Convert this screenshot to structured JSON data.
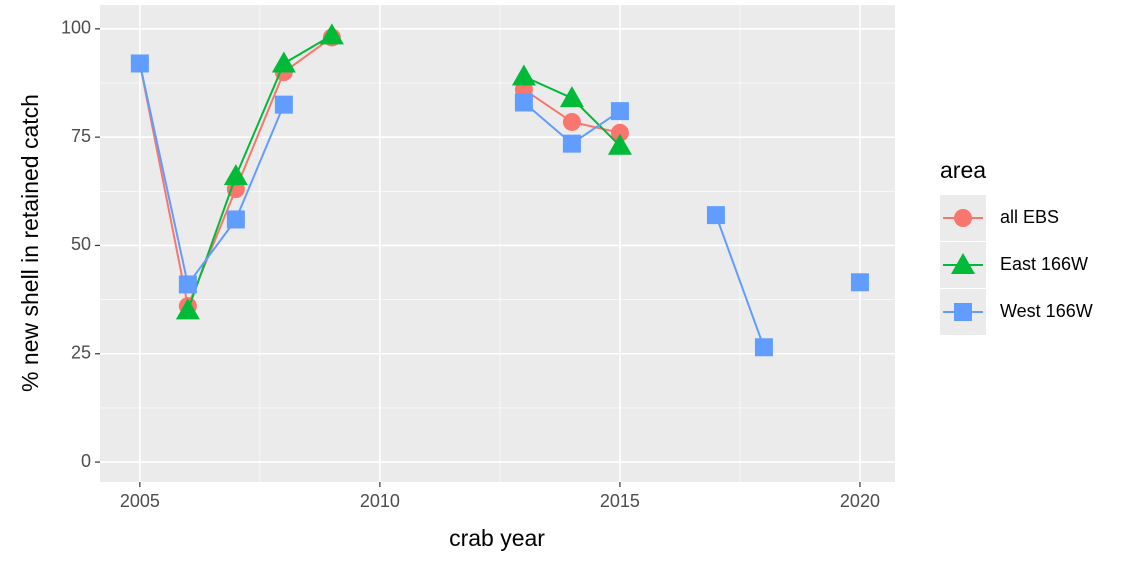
{
  "chart_data": {
    "type": "line",
    "x_label": "crab year",
    "y_label": "% new shell in retained catch",
    "legend_title": "area",
    "legend_position": "right",
    "grid": true,
    "x": [
      2005,
      2006,
      2007,
      2008,
      2009,
      2010,
      2011,
      2012,
      2013,
      2014,
      2015,
      2016,
      2017,
      2018,
      2019,
      2020
    ],
    "series": [
      {
        "name": "all EBS",
        "color": "#F8766D",
        "marker": "circle",
        "values": [
          92,
          36,
          63,
          90,
          98,
          null,
          null,
          null,
          86,
          78.5,
          76,
          null,
          null,
          null,
          null,
          null
        ]
      },
      {
        "name": "East 166W",
        "color": "#00BA38",
        "marker": "triangle",
        "values": [
          null,
          35,
          66,
          92,
          98.5,
          null,
          null,
          null,
          89,
          84,
          73,
          null,
          null,
          null,
          null,
          null
        ]
      },
      {
        "name": "West 166W",
        "color": "#619CFF",
        "marker": "square",
        "values": [
          92,
          41,
          56,
          82.5,
          null,
          null,
          null,
          null,
          83,
          73.5,
          81,
          null,
          57,
          26.5,
          null,
          41.5
        ]
      }
    ],
    "xlim": [
      2004.17,
      2020.73
    ],
    "xticks": [
      2005,
      2010,
      2015,
      2020
    ],
    "ylim": [
      -4.6,
      105.5
    ],
    "yticks": [
      0,
      25,
      50,
      75,
      100
    ]
  }
}
